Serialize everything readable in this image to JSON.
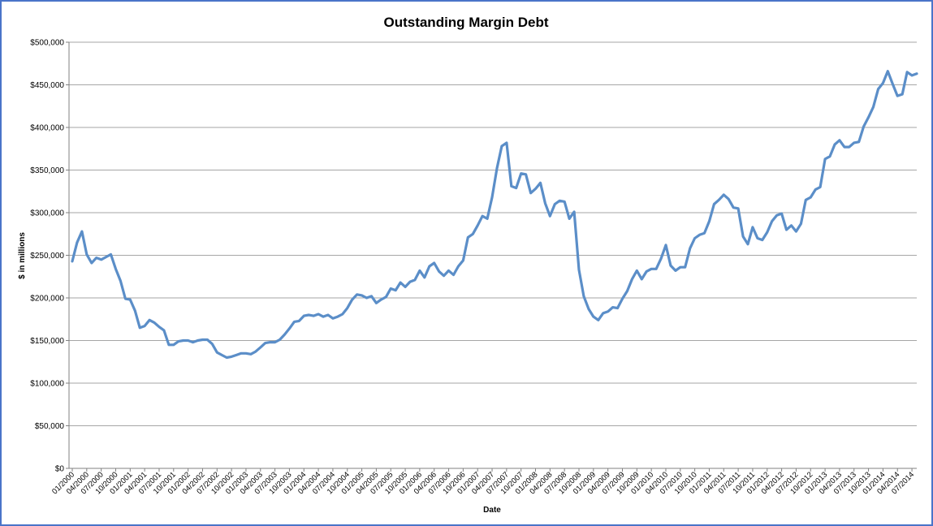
{
  "chart_data": {
    "type": "line",
    "title": "Outstanding Margin Debt",
    "xlabel": "Date",
    "ylabel": "$ in millions",
    "ylim": [
      0,
      500000
    ],
    "y_ticks": [
      "$0",
      "$50,000",
      "$100,000",
      "$150,000",
      "$200,000",
      "$250,000",
      "$300,000",
      "$350,000",
      "$400,000",
      "$450,000",
      "$500,000"
    ],
    "x_ticks": [
      "01/2000",
      "04/2000",
      "07/2000",
      "10/2000",
      "01/2001",
      "04/2001",
      "07/2001",
      "10/2001",
      "01/2002",
      "04/2002",
      "07/2002",
      "10/2002",
      "01/2003",
      "04/2003",
      "07/2003",
      "10/2003",
      "01/2004",
      "04/2004",
      "07/2004",
      "10/2004",
      "01/2005",
      "04/2005",
      "07/2005",
      "10/2005",
      "01/2006",
      "04/2006",
      "07/2006",
      "10/2006",
      "01/2007",
      "04/2007",
      "07/2007",
      "10/2007",
      "01/2008",
      "04/2008",
      "07/2008",
      "10/2008",
      "01/2009",
      "04/2009",
      "07/2009",
      "10/2009",
      "01/2010",
      "04/2010",
      "07/2010",
      "10/2010",
      "01/2011",
      "04/2011",
      "07/2011",
      "10/2011",
      "01/2012",
      "04/2012",
      "07/2012",
      "10/2012",
      "01/2013",
      "04/2013",
      "07/2013",
      "10/2013",
      "01/2014",
      "04/2014",
      "07/2014"
    ],
    "grid": true,
    "legend": "none",
    "line_color": "#5b8ec8",
    "series": [
      {
        "x_start": "01/2000",
        "x_interval": "monthly",
        "values": [
          243000,
          265000,
          278000,
          251000,
          241000,
          247000,
          245000,
          248000,
          251000,
          234000,
          220000,
          199000,
          198000,
          185000,
          165000,
          167000,
          174000,
          171000,
          166000,
          162000,
          145000,
          145000,
          149000,
          150000,
          150000,
          148000,
          150000,
          151000,
          151000,
          146000,
          136000,
          133000,
          130000,
          131000,
          133000,
          135000,
          135000,
          134000,
          137000,
          142000,
          147000,
          148000,
          148000,
          151000,
          157000,
          164000,
          172000,
          173000,
          179000,
          180000,
          179000,
          181000,
          178000,
          180000,
          176000,
          178000,
          181000,
          188000,
          198000,
          204000,
          203000,
          200000,
          202000,
          194000,
          198000,
          201000,
          211000,
          209000,
          218000,
          213000,
          219000,
          221000,
          232000,
          224000,
          237000,
          241000,
          231000,
          226000,
          232000,
          227000,
          237000,
          244000,
          271000,
          275000,
          285000,
          296000,
          293000,
          318000,
          352000,
          378000,
          382000,
          331000,
          329000,
          346000,
          345000,
          323000,
          328000,
          335000,
          311000,
          296000,
          310000,
          314000,
          313000,
          293000,
          301000,
          233000,
          202000,
          187000,
          178000,
          174000,
          182000,
          184000,
          189000,
          188000,
          199000,
          208000,
          222000,
          232000,
          222000,
          231000,
          234000,
          234000,
          246000,
          262000,
          238000,
          232000,
          236000,
          236000,
          258000,
          270000,
          274000,
          276000,
          290000,
          310000,
          315000,
          321000,
          316000,
          306000,
          305000,
          272000,
          263000,
          283000,
          270000,
          268000,
          277000,
          290000,
          297000,
          299000,
          280000,
          285000,
          278000,
          287000,
          315000,
          318000,
          327000,
          330000,
          363000,
          366000,
          380000,
          385000,
          377000,
          377000,
          382000,
          383000,
          401000,
          412000,
          424000,
          445000,
          452000,
          466000,
          451000,
          437000,
          439000,
          465000,
          461000,
          463000
        ]
      }
    ]
  }
}
